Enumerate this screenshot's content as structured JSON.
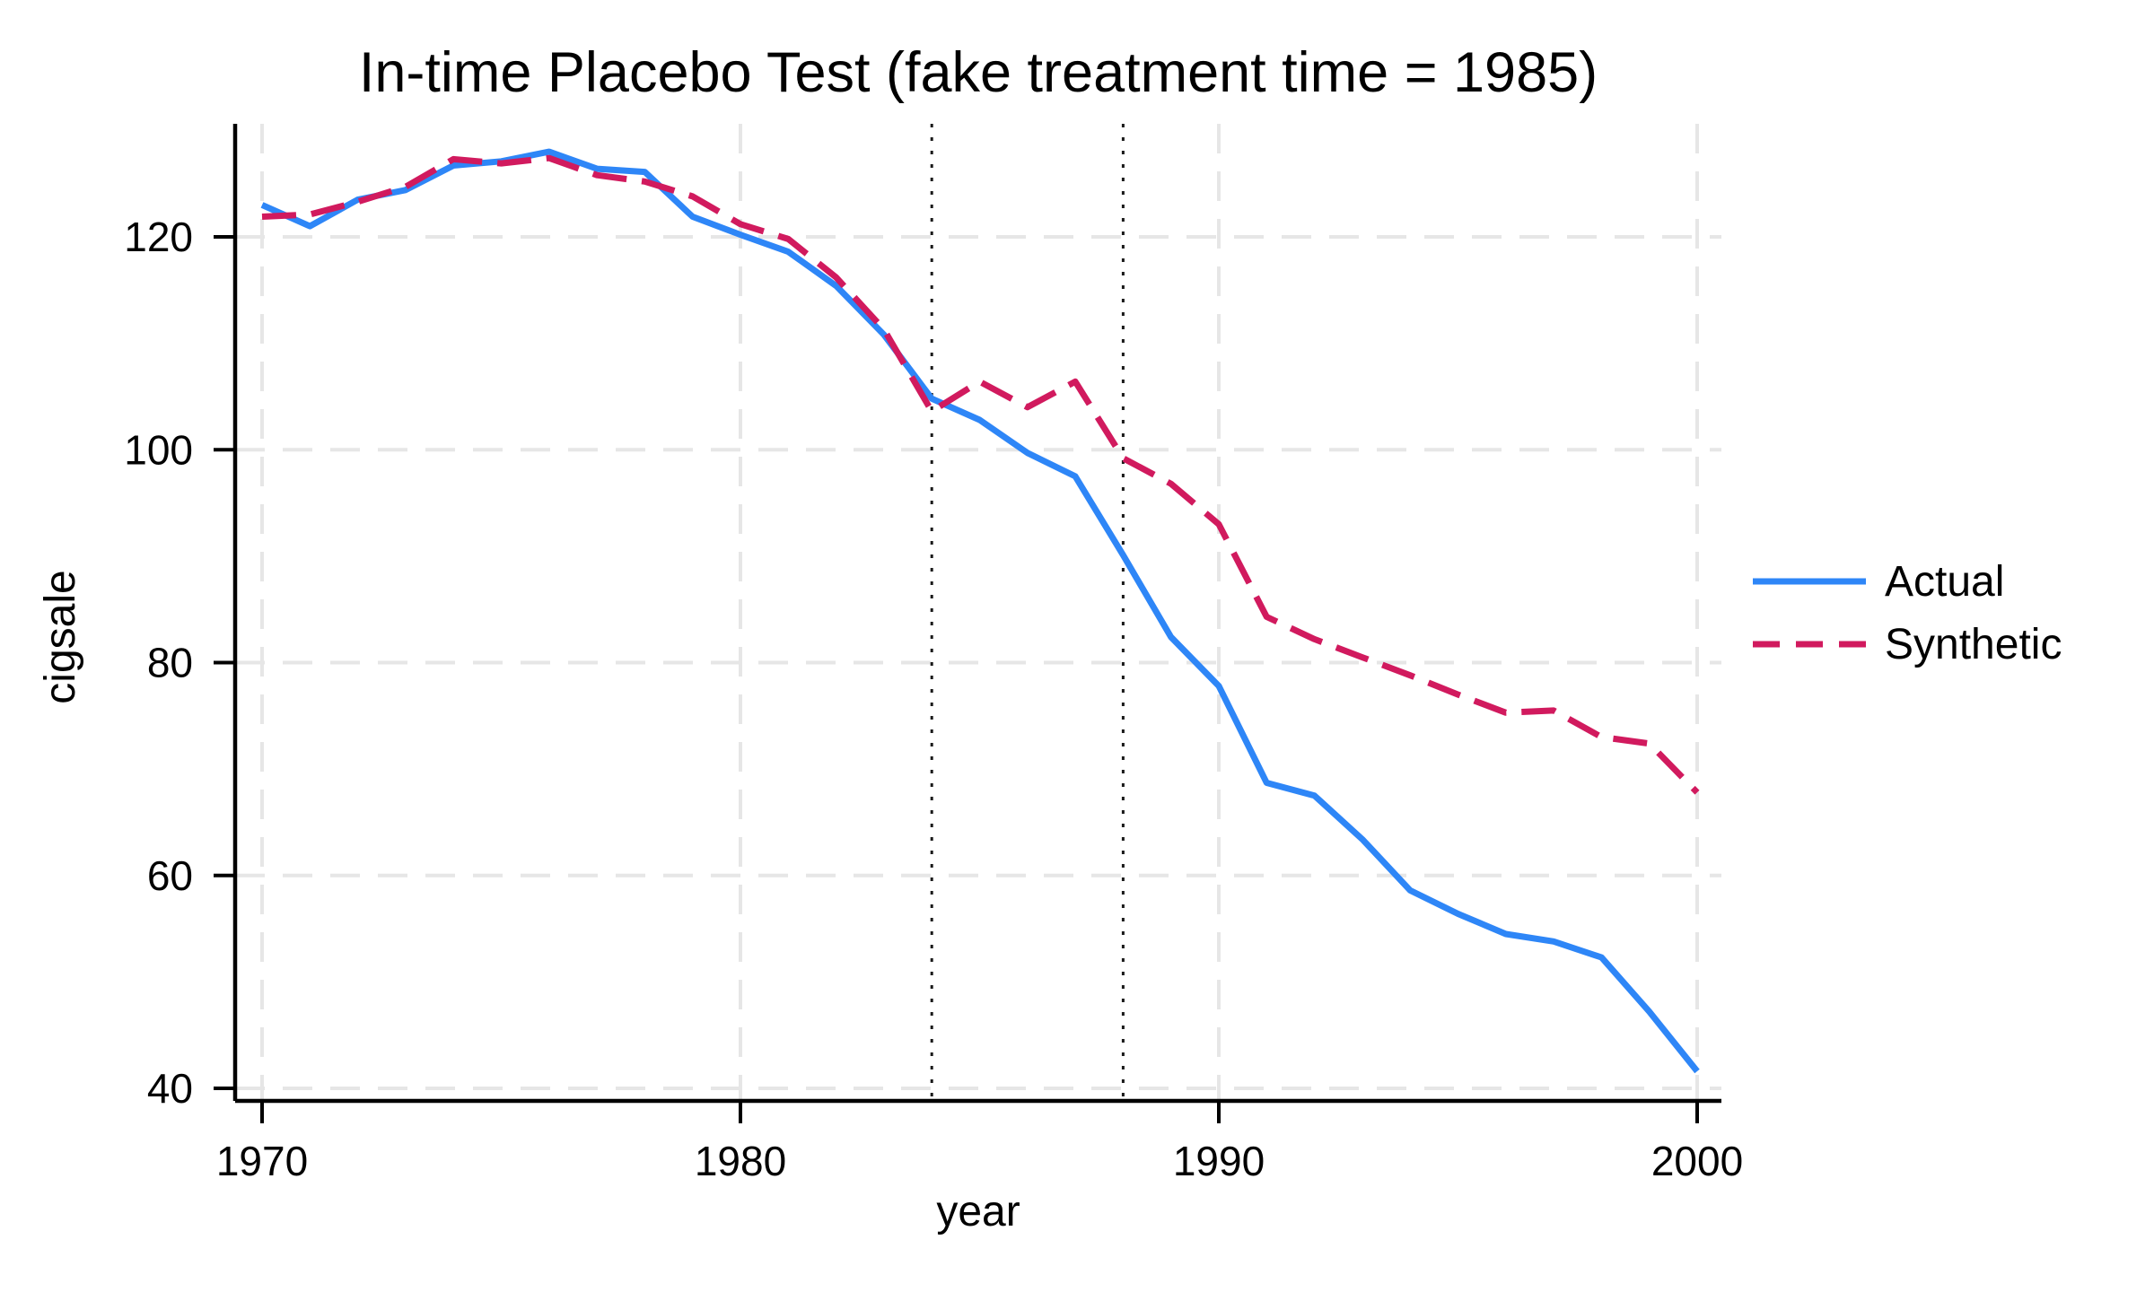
{
  "chart_data": {
    "type": "line",
    "title": "In-time Placebo Test (fake treatment time = 1985)",
    "xlabel": "year",
    "ylabel": "cigsale",
    "x_ticks": [
      1970,
      1980,
      1990,
      2000
    ],
    "y_ticks": [
      40,
      60,
      80,
      100,
      120
    ],
    "xlim": [
      1969.4,
      2000.6
    ],
    "ylim": [
      38.8,
      130.6
    ],
    "grid": true,
    "legend_position": "right-middle",
    "years": [
      1970,
      1971,
      1972,
      1973,
      1974,
      1975,
      1976,
      1977,
      1978,
      1979,
      1980,
      1981,
      1982,
      1983,
      1984,
      1985,
      1986,
      1987,
      1988,
      1989,
      1990,
      1991,
      1992,
      1993,
      1994,
      1995,
      1996,
      1997,
      1998,
      1999,
      2000
    ],
    "series": [
      {
        "name": "Actual",
        "style": "solid",
        "color": "#2E86F7",
        "values": [
          123.0,
          121.0,
          123.5,
          124.4,
          126.7,
          127.1,
          128.0,
          126.4,
          126.1,
          121.9,
          120.2,
          118.6,
          115.4,
          110.8,
          104.8,
          102.8,
          99.7,
          97.5,
          90.1,
          82.4,
          77.8,
          68.7,
          67.5,
          63.4,
          58.6,
          56.4,
          54.5,
          53.8,
          52.3,
          47.2,
          41.6
        ]
      },
      {
        "name": "Synthetic",
        "style": "dashed",
        "color": "#D11A5E",
        "values": [
          121.9,
          122.1,
          123.3,
          124.7,
          127.3,
          126.9,
          127.4,
          125.8,
          125.2,
          123.8,
          121.2,
          119.8,
          116.2,
          111.3,
          103.6,
          106.4,
          104.0,
          106.4,
          99.2,
          96.8,
          93.0,
          84.3,
          82.2,
          80.5,
          78.8,
          77.0,
          75.3,
          75.5,
          73.0,
          72.4,
          67.8
        ]
      }
    ],
    "annotations": {
      "vlines": [
        {
          "x": 1984,
          "style": "dotted",
          "color": "#1A1A1A"
        },
        {
          "x": 1988,
          "style": "dotted",
          "color": "#1A1A1A"
        }
      ]
    },
    "colors": {
      "grid": "#E6E6E6",
      "axis": "#000000"
    }
  }
}
